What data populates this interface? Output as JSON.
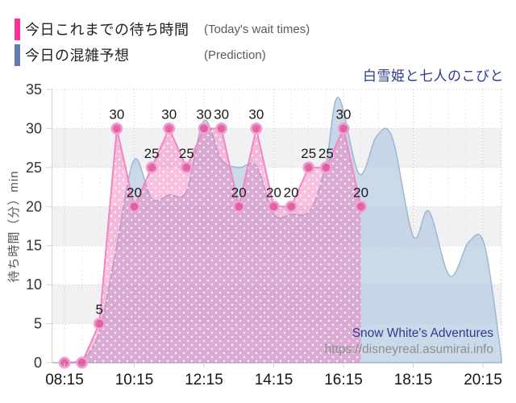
{
  "legend": {
    "items": [
      {
        "label": "今日これまでの待ち時間",
        "sublabel": "(Today's wait times)",
        "color": "#ff2f9a"
      },
      {
        "label": "今日の混雑予想",
        "sublabel": "(Prediction)",
        "color": "#6679b5"
      }
    ]
  },
  "attraction": {
    "title_jp": "白雪姫と七人のこびと",
    "title_en": "Snow White's Adventures",
    "url": "https://disneyreal.asumirai.info"
  },
  "chart_data": {
    "type": "line",
    "title": "白雪姫と七人のこびと",
    "xlabel": "",
    "ylabel": "待ち時間（分）min",
    "ylim": [
      0,
      35
    ],
    "yticks": [
      0,
      5,
      10,
      15,
      20,
      25,
      30,
      35
    ],
    "xticks": [
      {
        "label": "08:15",
        "h": 8.25
      },
      {
        "label": "10:15",
        "h": 10.25
      },
      {
        "label": "12:15",
        "h": 12.25
      },
      {
        "label": "14:15",
        "h": 14.25
      },
      {
        "label": "16:15",
        "h": 16.25
      },
      {
        "label": "18:15",
        "h": 18.25
      },
      {
        "label": "20:15",
        "h": 20.25
      }
    ],
    "grid": {
      "color": "#c9c9c9",
      "minor_color": "#dcdcdc",
      "band_fill": "#f1f1f4",
      "axis_color": "#d5d5d5"
    },
    "legend_position": "top-left",
    "series": [
      {
        "name": "今日の混雑予想",
        "type": "area",
        "smooth": true,
        "line_color": "#9fb6d2",
        "fill_color": "#b4cbe0",
        "fill_opacity": 0.7,
        "points": [
          {
            "h": 7.9,
            "v": 0
          },
          {
            "h": 8.25,
            "v": 0
          },
          {
            "h": 8.75,
            "v": 0.4
          },
          {
            "h": 9.25,
            "v": 4
          },
          {
            "h": 9.75,
            "v": 15
          },
          {
            "h": 10.25,
            "v": 26
          },
          {
            "h": 10.75,
            "v": 21
          },
          {
            "h": 11.25,
            "v": 21.5
          },
          {
            "h": 11.75,
            "v": 22
          },
          {
            "h": 12.25,
            "v": 31
          },
          {
            "h": 12.75,
            "v": 26
          },
          {
            "h": 13.25,
            "v": 25
          },
          {
            "h": 13.75,
            "v": 25.2
          },
          {
            "h": 14.25,
            "v": 19
          },
          {
            "h": 14.75,
            "v": 19
          },
          {
            "h": 15.3,
            "v": 19.5
          },
          {
            "h": 15.75,
            "v": 25.5
          },
          {
            "h": 16.1,
            "v": 34
          },
          {
            "h": 16.7,
            "v": 24.2
          },
          {
            "h": 17.2,
            "v": 29
          },
          {
            "h": 17.65,
            "v": 28.8
          },
          {
            "h": 18.25,
            "v": 16.2
          },
          {
            "h": 18.7,
            "v": 19.4
          },
          {
            "h": 19.3,
            "v": 11.1
          },
          {
            "h": 19.85,
            "v": 15.5
          },
          {
            "h": 20.3,
            "v": 15
          },
          {
            "h": 20.78,
            "v": 0.6
          }
        ]
      },
      {
        "name": "今日これまでの待ち時間",
        "type": "line-area-dotted",
        "smooth": false,
        "line_color": "#f285c2",
        "fill_color": "#f06ab5",
        "fill_opacity": 0.42,
        "marker_color": "#e0559f",
        "marker_ring": "#f0a2cf",
        "label_color": "#1a1a1a",
        "points": [
          {
            "time": "08:15",
            "h": 8.25,
            "v": 0,
            "label": ""
          },
          {
            "time": "08:45",
            "h": 8.75,
            "v": 0,
            "label": ""
          },
          {
            "time": "09:15",
            "h": 9.25,
            "v": 5,
            "label": "5"
          },
          {
            "time": "09:45",
            "h": 9.75,
            "v": 30,
            "label": "30"
          },
          {
            "time": "10:15",
            "h": 10.25,
            "v": 20,
            "label": "20"
          },
          {
            "time": "10:45",
            "h": 10.75,
            "v": 25,
            "label": "25"
          },
          {
            "time": "11:15",
            "h": 11.25,
            "v": 30,
            "label": "30"
          },
          {
            "time": "11:45",
            "h": 11.75,
            "v": 25,
            "label": "25"
          },
          {
            "time": "12:15",
            "h": 12.25,
            "v": 30,
            "label": "30"
          },
          {
            "time": "12:45",
            "h": 12.75,
            "v": 30,
            "label": "30"
          },
          {
            "time": "13:15",
            "h": 13.25,
            "v": 20,
            "label": "20"
          },
          {
            "time": "13:45",
            "h": 13.75,
            "v": 30,
            "label": "30"
          },
          {
            "time": "14:15",
            "h": 14.25,
            "v": 20,
            "label": "20"
          },
          {
            "time": "14:45",
            "h": 14.75,
            "v": 20,
            "label": "20"
          },
          {
            "time": "15:15",
            "h": 15.25,
            "v": 25,
            "label": "25"
          },
          {
            "time": "15:45",
            "h": 15.75,
            "v": 25,
            "label": "25"
          },
          {
            "time": "16:15",
            "h": 16.25,
            "v": 30,
            "label": "30"
          },
          {
            "time": "16:45",
            "h": 16.75,
            "v": 20,
            "label": "20"
          }
        ]
      }
    ]
  }
}
